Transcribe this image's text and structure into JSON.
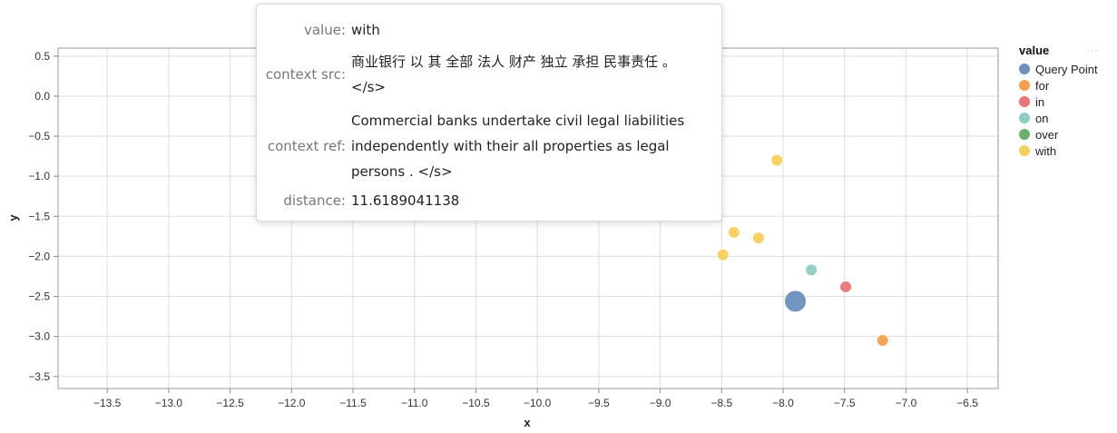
{
  "chart_data": {
    "type": "scatter",
    "xlabel": "x",
    "ylabel": "y",
    "xlim": [
      -13.9,
      -6.25
    ],
    "ylim": [
      -3.65,
      0.6
    ],
    "xticks": [
      -13.5,
      -13.0,
      -12.5,
      -12.0,
      -11.5,
      -11.0,
      -10.5,
      -10.0,
      -9.5,
      -9.0,
      -8.5,
      -8.0,
      -7.5,
      -7.0,
      -6.5
    ],
    "xtick_labels": [
      "−13.5",
      "−13.0",
      "−12.5",
      "−12.0",
      "−11.5",
      "−11.0",
      "−10.5",
      "−10.0",
      "−9.5",
      "−9.0",
      "−8.5",
      "−8.0",
      "−7.5",
      "−7.0",
      "−6.5"
    ],
    "yticks": [
      0.5,
      0.0,
      -0.5,
      -1.0,
      -1.5,
      -2.0,
      -2.5,
      -3.0,
      -3.5
    ],
    "ytick_labels": [
      "0.5",
      "0.0",
      "−0.5",
      "−1.0",
      "−1.5",
      "−2.0",
      "−2.5",
      "−3.0",
      "−3.5"
    ],
    "grid": true,
    "legend": {
      "title": "value",
      "placement": "right",
      "more_label": "···",
      "entries": [
        {
          "label": "Query Point",
          "color": "#6b8fbe"
        },
        {
          "label": "for",
          "color": "#f6a04d"
        },
        {
          "label": "in",
          "color": "#eb7474"
        },
        {
          "label": "on",
          "color": "#8ecbc5"
        },
        {
          "label": "over",
          "color": "#6ab06a"
        },
        {
          "label": "with",
          "color": "#f4d05a"
        }
      ]
    },
    "points": [
      {
        "series": "with",
        "x": -8.05,
        "y": -0.8,
        "size": "small"
      },
      {
        "series": "with",
        "x": -8.4,
        "y": -1.7,
        "size": "small"
      },
      {
        "series": "with",
        "x": -8.2,
        "y": -1.77,
        "size": "small"
      },
      {
        "series": "with",
        "x": -8.49,
        "y": -1.98,
        "size": "small"
      },
      {
        "series": "on",
        "x": -7.77,
        "y": -2.17,
        "size": "small"
      },
      {
        "series": "in",
        "x": -7.49,
        "y": -2.38,
        "size": "small"
      },
      {
        "series": "Query Point",
        "x": -7.9,
        "y": -2.56,
        "size": "large"
      },
      {
        "series": "for",
        "x": -7.19,
        "y": -3.05,
        "size": "small"
      }
    ]
  },
  "tooltip": {
    "rows": [
      {
        "key": "value:",
        "value": "with"
      },
      {
        "key": "context src:",
        "value": "商业银行 以 其 全部 法人 财产 独立 承担 民事责任 。 </s>"
      },
      {
        "key": "context ref:",
        "value": "Commercial banks undertake civil legal liabilities independently with their all properties as legal persons . </s>"
      },
      {
        "key": "distance:",
        "value": "11.6189041138"
      }
    ]
  }
}
